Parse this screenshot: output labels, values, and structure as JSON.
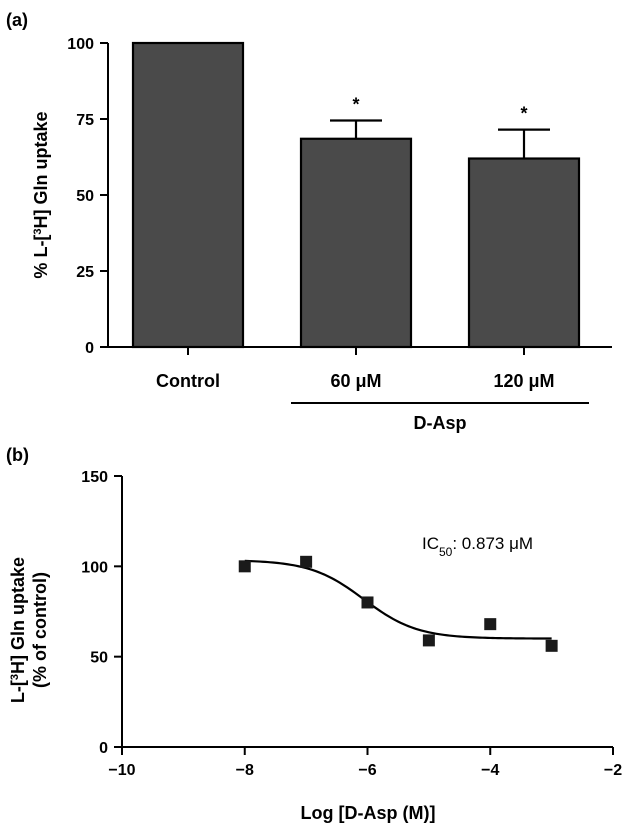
{
  "colors": {
    "bar_fill": "#4a4a4a",
    "axis": "#000000",
    "marker": "#1a1a1a"
  },
  "chart_data": [
    {
      "panel_label": "(a)",
      "type": "bar",
      "categories": [
        "Control",
        "60 μM",
        "120 μM"
      ],
      "values": [
        100,
        68.5,
        62
      ],
      "error_upper": [
        null,
        74.5,
        71.5
      ],
      "significance": [
        "",
        "*",
        "*"
      ],
      "group_label": "D-Asp",
      "group_members": [
        "60 μM",
        "120 μM"
      ],
      "ylabel_parts": [
        "% L-[",
        "3",
        "H] Gln uptake"
      ],
      "ylim": [
        0,
        100
      ],
      "yticks": [
        0,
        25,
        50,
        75,
        100
      ],
      "ytick_labels": [
        "0",
        "25",
        "50",
        "75",
        "100"
      ]
    },
    {
      "panel_label": "(b)",
      "type": "scatter",
      "points": [
        {
          "x": -8,
          "y": 100
        },
        {
          "x": -7,
          "y": 102.5
        },
        {
          "x": -6,
          "y": 80
        },
        {
          "x": -5,
          "y": 59
        },
        {
          "x": -4,
          "y": 68
        },
        {
          "x": -3,
          "y": 56
        }
      ],
      "fit": {
        "bottom": 60,
        "top": 103.5,
        "log_ic50": -6.06,
        "hill": -1
      },
      "annotation_parts": [
        "IC",
        "50",
        ": 0.873 μM"
      ],
      "xlabel": "Log [D-Asp (M)]",
      "ylabel_line1_parts": [
        "L-[",
        "3",
        "H] Gln uptake"
      ],
      "ylabel_line2": "(% of control)",
      "xlim": [
        -10,
        -2
      ],
      "xticks": [
        -10,
        -8,
        -6,
        -4,
        -2
      ],
      "xtick_labels": [
        "−10",
        "−8",
        "−6",
        "−4",
        "−2"
      ],
      "ylim": [
        0,
        150
      ],
      "yticks": [
        0,
        50,
        100,
        150
      ],
      "ytick_labels": [
        "0",
        "50",
        "100",
        "150"
      ]
    }
  ]
}
